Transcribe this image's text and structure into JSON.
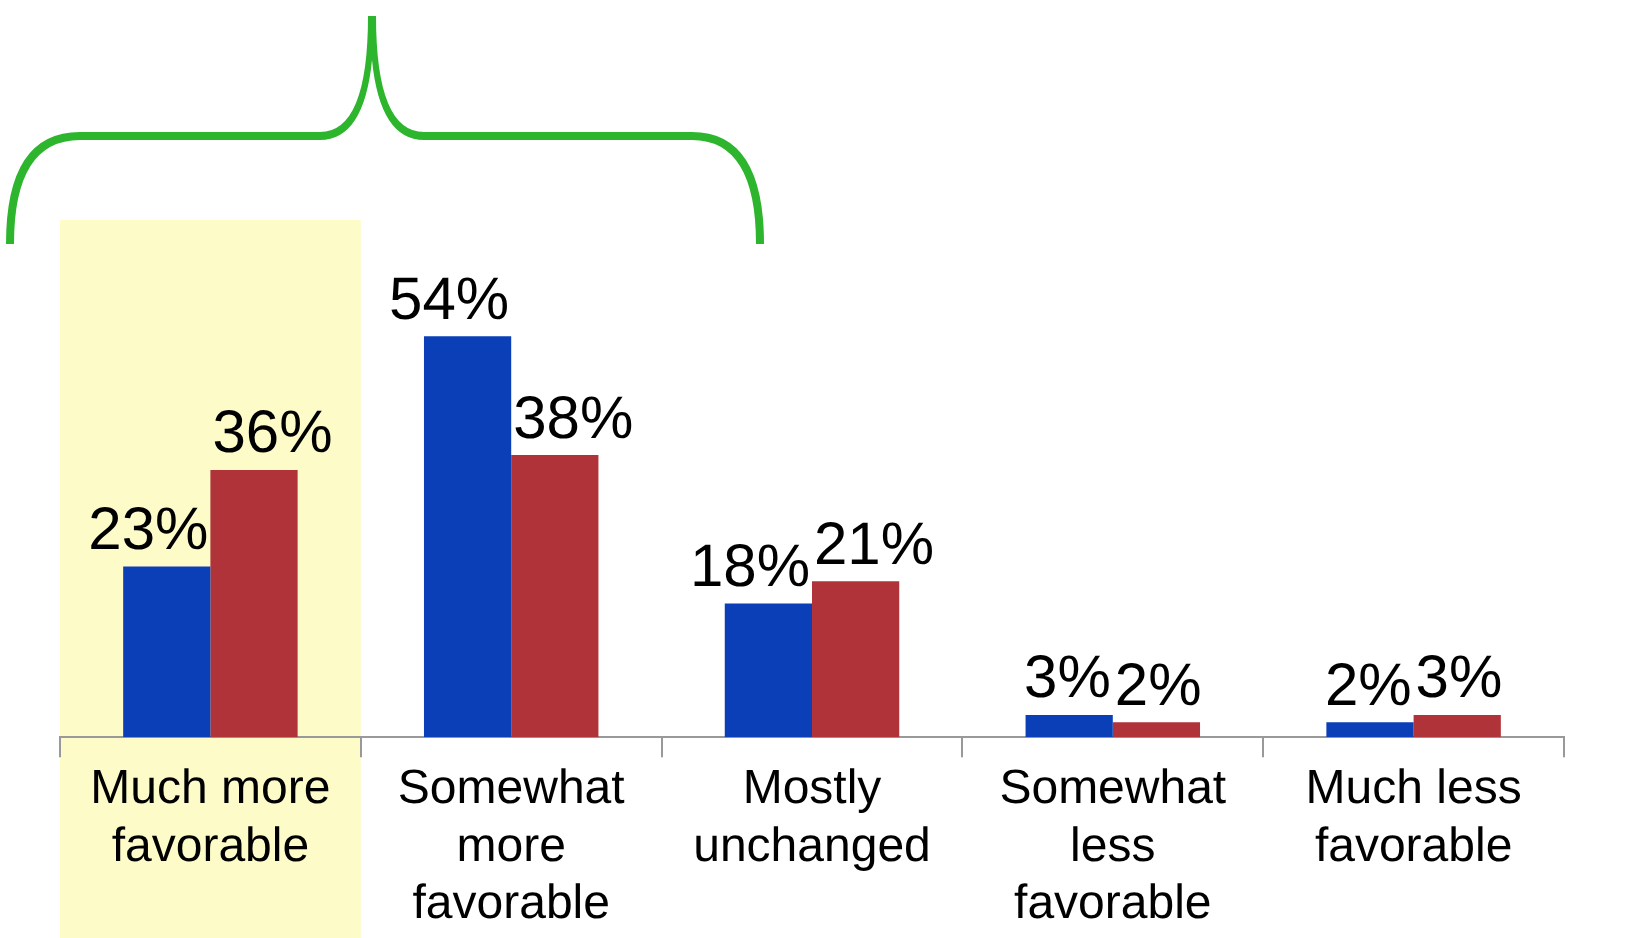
{
  "chart_data": {
    "type": "bar",
    "categories": [
      "Much more favorable",
      "Somewhat more favorable",
      "Mostly unchanged",
      "Somewhat less favorable",
      "Much less favorable"
    ],
    "series": [
      {
        "color": "#0a3fb8",
        "values": [
          23,
          54,
          18,
          3,
          2
        ],
        "value_labels": [
          "23%",
          "54%",
          "18%",
          "3%",
          "2%"
        ]
      },
      {
        "color": "#b0333a",
        "values": [
          36,
          38,
          21,
          2,
          3
        ],
        "value_labels": [
          "36%",
          "38%",
          "21%",
          "2%",
          "3%"
        ]
      }
    ],
    "tick_labels": "x",
    "grid": false,
    "legend": false,
    "bands": [
      {
        "axis": "x",
        "from": "Much more favorable",
        "to": "Much more favorable",
        "color": "#fdfbc8"
      }
    ]
  }
}
